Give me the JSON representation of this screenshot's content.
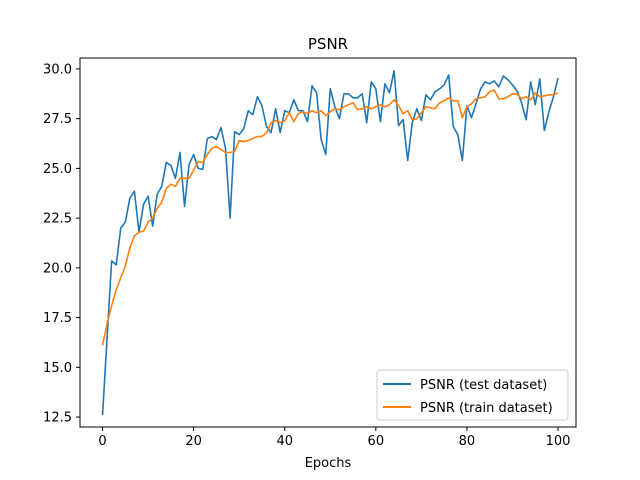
{
  "chart_data": {
    "type": "line",
    "title": "PSNR",
    "xlabel": "Epochs",
    "ylabel": "",
    "xlim": [
      -4.95,
      103.95
    ],
    "ylim": [
      12.0,
      30.55
    ],
    "xticks": [
      0,
      20,
      40,
      60,
      80,
      100
    ],
    "yticks": [
      12.5,
      15.0,
      17.5,
      20.0,
      22.5,
      25.0,
      27.5,
      30.0
    ],
    "ytick_labels": [
      "12.5",
      "15.0",
      "17.5",
      "20.0",
      "22.5",
      "25.0",
      "27.5",
      "30.0"
    ],
    "grid": false,
    "legend_position": "lower-right",
    "series": [
      {
        "name": "PSNR (test dataset)",
        "color": "#1f77b4",
        "values": [
          12.6,
          16.5,
          20.35,
          20.15,
          22.0,
          22.3,
          23.5,
          23.85,
          21.8,
          23.2,
          23.6,
          22.1,
          23.7,
          24.1,
          25.3,
          25.15,
          24.5,
          25.8,
          23.1,
          25.2,
          25.7,
          25.0,
          24.95,
          26.5,
          26.6,
          26.45,
          27.05,
          26.0,
          22.5,
          26.85,
          26.7,
          27.0,
          27.9,
          27.7,
          28.6,
          28.15,
          27.1,
          26.8,
          28.0,
          26.8,
          27.9,
          27.8,
          28.45,
          27.9,
          27.9,
          27.35,
          29.15,
          28.8,
          26.45,
          25.7,
          29.0,
          28.1,
          27.5,
          28.75,
          28.75,
          28.55,
          28.55,
          28.75,
          27.3,
          29.35,
          29.0,
          27.35,
          29.25,
          28.8,
          29.9,
          27.15,
          27.45,
          25.4,
          27.3,
          28.0,
          27.4,
          28.7,
          28.45,
          28.85,
          29.0,
          29.2,
          29.7,
          27.1,
          26.7,
          25.4,
          28.15,
          27.55,
          28.25,
          29.0,
          29.35,
          29.25,
          29.4,
          29.1,
          29.65,
          29.45,
          29.2,
          28.9,
          28.3,
          27.45,
          29.35,
          28.2,
          29.5,
          26.9,
          27.85,
          28.6,
          29.55
        ]
      },
      {
        "name": "PSNR (train dataset)",
        "color": "#ff7f0e",
        "values": [
          16.1,
          17.2,
          18.1,
          18.9,
          19.5,
          20.1,
          21.0,
          21.6,
          21.8,
          21.85,
          22.3,
          22.5,
          23.0,
          23.3,
          24.0,
          24.2,
          24.1,
          24.5,
          24.5,
          24.5,
          24.9,
          25.35,
          25.3,
          25.7,
          26.0,
          26.1,
          25.95,
          25.8,
          25.8,
          25.85,
          26.4,
          26.35,
          26.4,
          26.5,
          26.6,
          26.6,
          26.8,
          27.3,
          27.4,
          27.3,
          27.4,
          27.8,
          27.35,
          27.75,
          27.85,
          27.75,
          27.9,
          27.8,
          27.9,
          27.65,
          27.85,
          28.0,
          27.95,
          28.1,
          28.2,
          28.3,
          27.95,
          28.0,
          28.1,
          28.0,
          28.1,
          28.2,
          28.1,
          28.2,
          28.45,
          28.15,
          27.75,
          27.9,
          27.45,
          27.5,
          27.8,
          28.1,
          28.05,
          28.0,
          28.3,
          28.4,
          28.55,
          28.4,
          28.4,
          27.55,
          28.1,
          28.25,
          28.5,
          28.55,
          28.6,
          28.85,
          28.95,
          28.5,
          28.5,
          28.6,
          28.75,
          28.75,
          28.5,
          28.6,
          28.45,
          28.8,
          28.6,
          28.65,
          28.7,
          28.7,
          28.8
        ]
      }
    ]
  }
}
